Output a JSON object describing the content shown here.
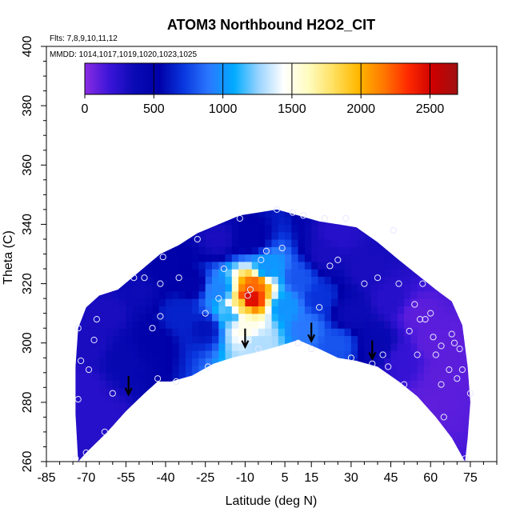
{
  "chart_data": {
    "type": "heatmap",
    "title": "ATOM3 Northbound H2O2_CIT",
    "annotations": [
      "Flts: 7,8,9,10,11,12",
      "MMDD: 1014,1017,1019,1020,1023,1025"
    ],
    "xlabel": "Latitude (deg N)",
    "ylabel": "Theta (C)",
    "xlim": [
      -85,
      85
    ],
    "ylim": [
      260,
      400
    ],
    "x_ticks": [
      -85,
      -70,
      -55,
      -40,
      -25,
      -10,
      5,
      15,
      30,
      45,
      60,
      75
    ],
    "y_ticks": [
      260,
      280,
      300,
      320,
      340,
      360,
      380,
      400
    ],
    "colorbar": {
      "min": 0,
      "max": 2700,
      "ticks": [
        0,
        500,
        1000,
        1500,
        2000,
        2500
      ],
      "colors": [
        "#8a2be2",
        "#3a14d8",
        "#0a0ab4",
        "#0000a8",
        "#0a38e0",
        "#2a78ff",
        "#00aaff",
        "#9ad4ff",
        "#ffffff",
        "#fffcc0",
        "#ffe060",
        "#ffb800",
        "#ff7a00",
        "#ff2a00",
        "#cc0000",
        "#a01010"
      ]
    },
    "domain_boundary": {
      "lower": [
        [
          -73,
          260
        ],
        [
          -70,
          263
        ],
        [
          -62,
          270
        ],
        [
          -55,
          277
        ],
        [
          -48,
          283
        ],
        [
          -43,
          287
        ],
        [
          -38,
          287
        ],
        [
          -30,
          289
        ],
        [
          -22,
          293
        ],
        [
          -15,
          295
        ],
        [
          -5,
          297
        ],
        [
          3,
          299
        ],
        [
          10,
          301
        ],
        [
          18,
          298
        ],
        [
          25,
          295
        ],
        [
          32,
          294
        ],
        [
          40,
          292
        ],
        [
          48,
          287
        ],
        [
          55,
          282
        ],
        [
          62,
          275
        ],
        [
          68,
          268
        ],
        [
          73,
          260
        ]
      ],
      "upper": [
        [
          -73,
          260
        ],
        [
          -74,
          276
        ],
        [
          -74,
          292
        ],
        [
          -73,
          305
        ],
        [
          -70,
          312
        ],
        [
          -65,
          316
        ],
        [
          -58,
          318
        ],
        [
          -50,
          324
        ],
        [
          -42,
          330
        ],
        [
          -35,
          333
        ],
        [
          -28,
          337
        ],
        [
          -20,
          340
        ],
        [
          -12,
          343
        ],
        [
          -5,
          344
        ],
        [
          2,
          345
        ],
        [
          10,
          343
        ],
        [
          18,
          341
        ],
        [
          25,
          340
        ],
        [
          32,
          339
        ],
        [
          40,
          334
        ],
        [
          48,
          328
        ],
        [
          55,
          323
        ],
        [
          62,
          318
        ],
        [
          68,
          314
        ],
        [
          72,
          306
        ],
        [
          74,
          292
        ],
        [
          75,
          280
        ],
        [
          74,
          268
        ],
        [
          73,
          260
        ]
      ]
    },
    "field": [
      {
        "lat": -72,
        "theta": 285,
        "value": 250
      },
      {
        "lat": -68,
        "theta": 300,
        "value": 300
      },
      {
        "lat": -62,
        "theta": 310,
        "value": 300
      },
      {
        "lat": -55,
        "theta": 295,
        "value": 400
      },
      {
        "lat": -50,
        "theta": 318,
        "value": 350
      },
      {
        "lat": -45,
        "theta": 300,
        "value": 500
      },
      {
        "lat": -40,
        "theta": 325,
        "value": 500
      },
      {
        "lat": -35,
        "theta": 310,
        "value": 650
      },
      {
        "lat": -30,
        "theta": 320,
        "value": 500
      },
      {
        "lat": -25,
        "theta": 305,
        "value": 600
      },
      {
        "lat": -20,
        "theta": 318,
        "value": 950
      },
      {
        "lat": -15,
        "theta": 310,
        "value": 1100
      },
      {
        "lat": -12,
        "theta": 312,
        "value": 1800
      },
      {
        "lat": -8,
        "theta": 315,
        "value": 2500
      },
      {
        "lat": -6,
        "theta": 320,
        "value": 2200
      },
      {
        "lat": -10,
        "theta": 305,
        "value": 1500
      },
      {
        "lat": -5,
        "theta": 300,
        "value": 1300
      },
      {
        "lat": -2,
        "theta": 325,
        "value": 1000
      },
      {
        "lat": -8,
        "theta": 335,
        "value": 500
      },
      {
        "lat": 5,
        "theta": 312,
        "value": 1000
      },
      {
        "lat": 10,
        "theta": 322,
        "value": 800
      },
      {
        "lat": 13,
        "theta": 305,
        "value": 900
      },
      {
        "lat": 18,
        "theta": 315,
        "value": 700
      },
      {
        "lat": 20,
        "theta": 330,
        "value": 300
      },
      {
        "lat": 25,
        "theta": 300,
        "value": 800
      },
      {
        "lat": 30,
        "theta": 310,
        "value": 350
      },
      {
        "lat": 35,
        "theta": 325,
        "value": 300
      },
      {
        "lat": 40,
        "theta": 300,
        "value": 400
      },
      {
        "lat": 45,
        "theta": 315,
        "value": 250
      },
      {
        "lat": 50,
        "theta": 295,
        "value": 200
      },
      {
        "lat": 55,
        "theta": 310,
        "value": 100
      },
      {
        "lat": 60,
        "theta": 300,
        "value": 100
      },
      {
        "lat": 65,
        "theta": 290,
        "value": 100
      },
      {
        "lat": 70,
        "theta": 300,
        "value": 100
      },
      {
        "lat": 60,
        "theta": 280,
        "value": 100
      },
      {
        "lat": -65,
        "theta": 275,
        "value": 250
      },
      {
        "lat": 25,
        "theta": 337,
        "value": 250
      },
      {
        "lat": -20,
        "theta": 335,
        "value": 300
      }
    ],
    "points": [
      [
        -73,
        305
      ],
      [
        -72,
        294
      ],
      [
        -73,
        281
      ],
      [
        -74,
        261
      ],
      [
        -70,
        263
      ],
      [
        -69,
        291
      ],
      [
        -67,
        301
      ],
      [
        -66,
        308
      ],
      [
        -63,
        270
      ],
      [
        -60,
        283
      ],
      [
        -52,
        322
      ],
      [
        -48,
        322
      ],
      [
        -45,
        305
      ],
      [
        -42,
        309
      ],
      [
        -42,
        320
      ],
      [
        -43,
        288
      ],
      [
        -41,
        329
      ],
      [
        -36,
        287
      ],
      [
        -35,
        322
      ],
      [
        -28,
        335
      ],
      [
        -25,
        310
      ],
      [
        -24,
        292
      ],
      [
        -20,
        315
      ],
      [
        -18,
        325
      ],
      [
        -12,
        342
      ],
      [
        -9,
        316
      ],
      [
        -8,
        318
      ],
      [
        -5,
        298
      ],
      [
        -4,
        328
      ],
      [
        -2,
        331
      ],
      [
        2,
        345
      ],
      [
        4,
        332
      ],
      [
        8,
        344
      ],
      [
        10,
        300
      ],
      [
        12,
        343
      ],
      [
        15,
        298
      ],
      [
        18,
        312
      ],
      [
        20,
        342
      ],
      [
        22,
        326
      ],
      [
        25,
        328
      ],
      [
        28,
        342
      ],
      [
        30,
        295
      ],
      [
        35,
        320
      ],
      [
        38,
        293
      ],
      [
        40,
        322
      ],
      [
        42,
        296
      ],
      [
        44,
        292
      ],
      [
        46,
        338
      ],
      [
        48,
        320
      ],
      [
        50,
        286
      ],
      [
        52,
        304
      ],
      [
        54,
        313
      ],
      [
        55,
        296
      ],
      [
        56,
        308
      ],
      [
        57,
        320
      ],
      [
        58,
        308
      ],
      [
        60,
        310
      ],
      [
        61,
        302
      ],
      [
        62,
        296
      ],
      [
        64,
        286
      ],
      [
        64,
        299
      ],
      [
        65,
        275
      ],
      [
        67,
        291
      ],
      [
        68,
        303
      ],
      [
        69,
        300
      ],
      [
        70,
        288
      ],
      [
        71,
        298
      ],
      [
        72,
        291
      ],
      [
        73,
        261
      ],
      [
        75,
        283
      ]
    ],
    "arrows": [
      {
        "lat": -54,
        "theta": 284
      },
      {
        "lat": -10,
        "theta": 300
      },
      {
        "lat": 15,
        "theta": 302
      },
      {
        "lat": 38,
        "theta": 296
      }
    ]
  }
}
